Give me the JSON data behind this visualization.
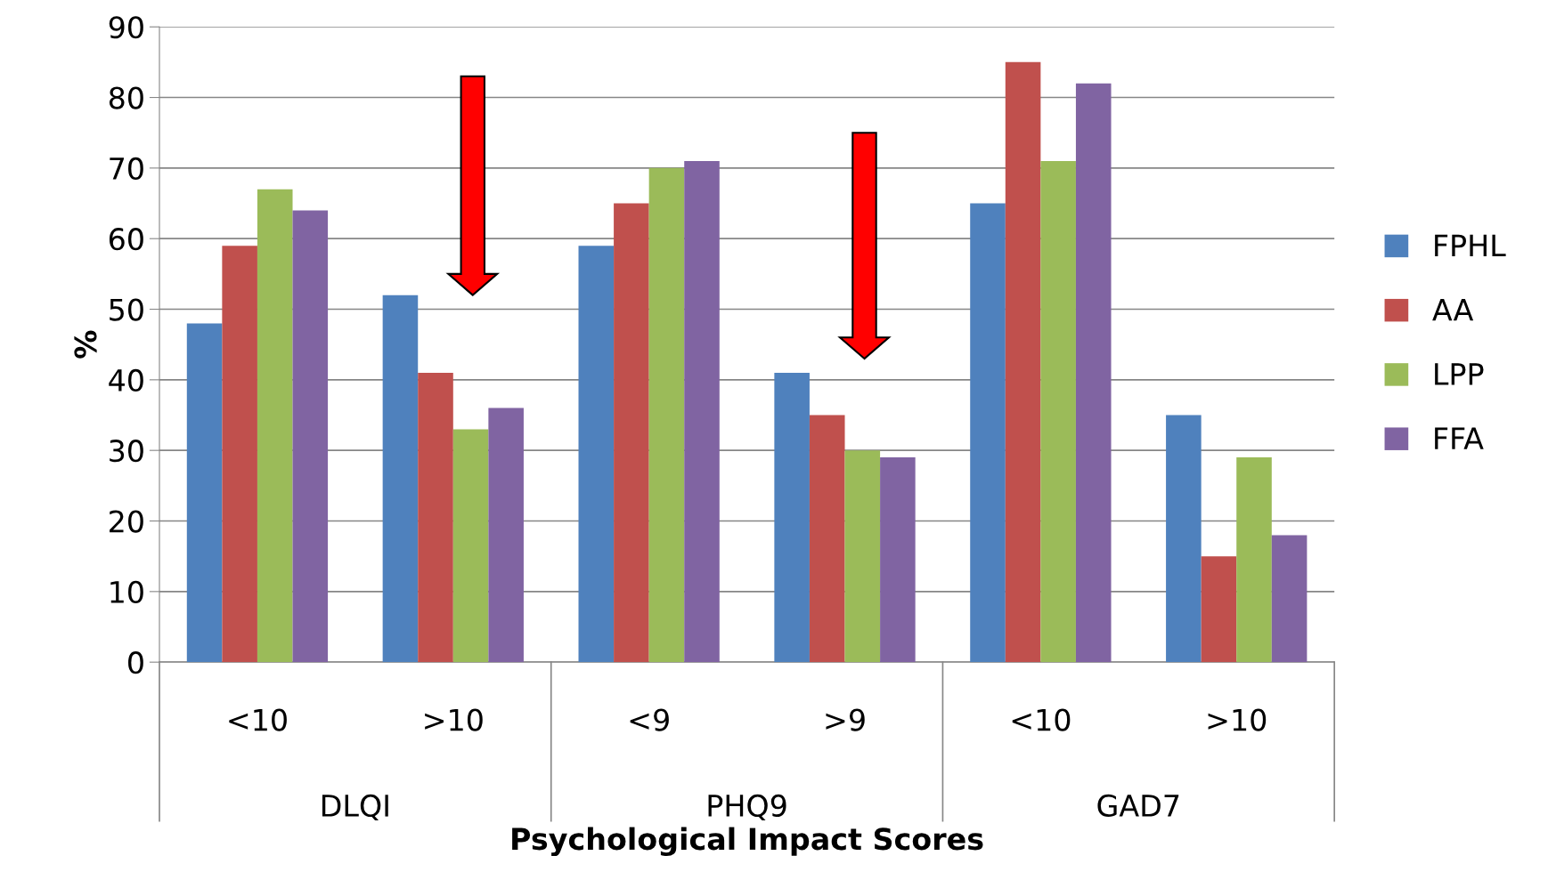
{
  "chart_data": {
    "type": "bar",
    "xlabel": "Psychological Impact Scores",
    "ylabel": "%",
    "categories": [
      "<10",
      ">10",
      "<9",
      ">9",
      "<10",
      ">10"
    ],
    "annotations": [
      "DLQI",
      "PHQ9",
      "GAD7"
    ],
    "series": [
      {
        "name": "FPHL",
        "color": "#4f81bd",
        "values": [
          48,
          52,
          59,
          41,
          65,
          35
        ]
      },
      {
        "name": "AA",
        "color": "#c0504d",
        "values": [
          59,
          41,
          65,
          35,
          85,
          15
        ]
      },
      {
        "name": "LPP",
        "color": "#9bbb59",
        "values": [
          67,
          33,
          70,
          30,
          71,
          29
        ]
      },
      {
        "name": "FFA",
        "color": "#8064a2",
        "values": [
          64,
          36,
          71,
          29,
          82,
          18
        ]
      }
    ],
    "ylim": [
      0,
      90
    ],
    "yticks": [
      0,
      10,
      20,
      30,
      40,
      50,
      60,
      70,
      80,
      90
    ],
    "grid": "y",
    "legend": "right"
  }
}
